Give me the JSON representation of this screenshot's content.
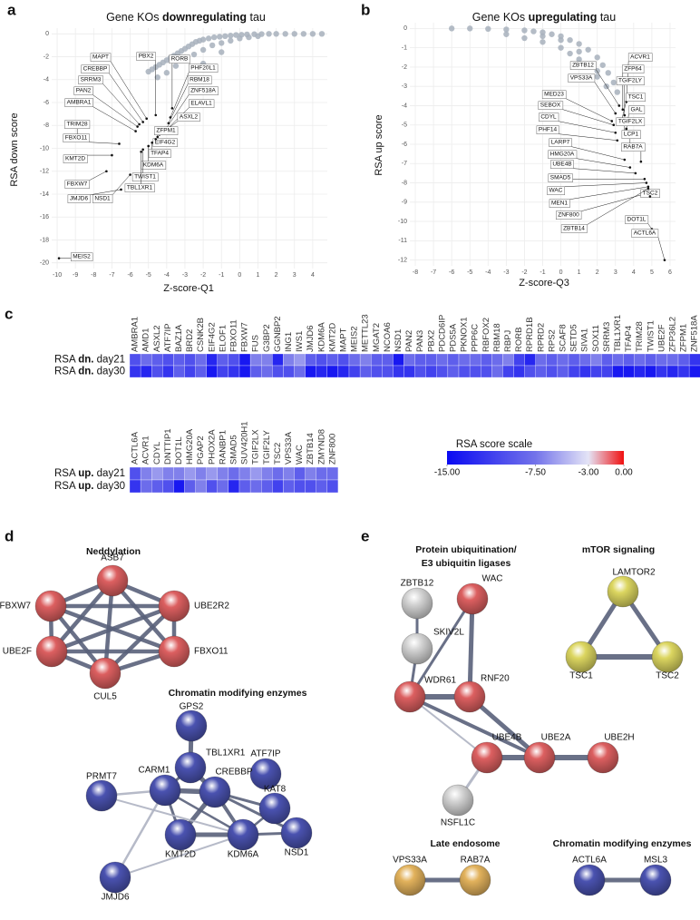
{
  "chart_data": [
    {
      "type": "scatter",
      "panel": "a",
      "title": [
        "Gene KOs ",
        "downregulating",
        " tau"
      ],
      "x_label": "Z-score-Q1",
      "y_label": "RSA down score",
      "xlim": [
        -10.3,
        4.8
      ],
      "ylim": [
        -20.5,
        0.5
      ],
      "xticks": [
        -10,
        -9,
        -8,
        -7,
        -6,
        -5,
        -4,
        -3,
        -2,
        -1,
        0,
        1,
        2,
        3,
        4
      ],
      "yticks": [
        0,
        -2,
        -4,
        -6,
        -8,
        -10,
        -12,
        -14,
        -16,
        -18,
        -20
      ],
      "grid": true,
      "series": [
        {
          "color": "#a7b0bc",
          "x": [
            -5.0,
            -4.8,
            -4.6,
            -4.4,
            -4.2,
            -4.0,
            -3.8,
            -3.6,
            -3.4,
            -3.2,
            -3.0,
            -2.8,
            -2.6,
            -2.4,
            -2.2,
            -2.0,
            -1.7,
            -1.4,
            -1.1,
            -0.8,
            -0.5,
            -0.2,
            0.1,
            0.4,
            0.8,
            1.2,
            1.6,
            2.0,
            2.5,
            3.0,
            3.5,
            4.0,
            4.5,
            -4.5,
            -4.0,
            -3.5,
            -3.0,
            -2.5,
            -2.0,
            -1.5,
            -1.0,
            -0.5,
            0.0,
            0.5,
            1.0,
            -2.0,
            -1.0
          ],
          "values": [
            -3.3,
            -3.1,
            -2.9,
            -2.7,
            -2.5,
            -2.3,
            -2.1,
            -1.9,
            -1.7,
            -1.5,
            -1.3,
            -1.1,
            -0.9,
            -0.7,
            -0.6,
            -0.5,
            -0.4,
            -0.3,
            -0.25,
            -0.2,
            -0.15,
            -0.1,
            -0.08,
            -0.05,
            -0.03,
            -0.02,
            0,
            0,
            0,
            0,
            0,
            0,
            0,
            -3.8,
            -3.4,
            -2.8,
            -2.3,
            -1.8,
            -1.4,
            -1.0,
            -0.8,
            -0.6,
            -0.4,
            -0.3,
            -0.2,
            -2.6,
            -1.6
          ]
        },
        {
          "color": "#111111",
          "x": [
            -9.9,
            -5.1,
            -4.6,
            -3.7,
            -5.3,
            -3.8,
            -5.5,
            -3.9,
            -5.6,
            -4.0,
            -5.7,
            -4.1,
            -8.9,
            -4.4,
            -6.6,
            -4.5,
            -4.6,
            -7.0,
            -4.8,
            -5.0,
            -7.3,
            -5.3,
            -5.4,
            -6.5,
            -6.0
          ],
          "values": [
            -19.6,
            -7.4,
            -7.1,
            -6.5,
            -7.7,
            -7.3,
            -7.9,
            -7.8,
            -8.1,
            -8.2,
            -8.5,
            -8.5,
            -9.1,
            -8.8,
            -9.6,
            -9.0,
            -9.2,
            -10.6,
            -9.5,
            -9.8,
            -12.0,
            -10.1,
            -10.3,
            -13.6,
            -12.3
          ],
          "point_labels": [
            "MEIS2",
            "MAPT",
            "PBX2",
            "RORB",
            "CREBBP",
            "PHF20L1",
            "SRRM3",
            "RBM18",
            "PAN2",
            "ZNF518A",
            "AMBRA1",
            "ELAVL1",
            "TRIM28",
            "ASXL2",
            "FBXO11",
            "ZFPM1",
            "EIF4G2",
            "KMT2D",
            "TFAP4",
            "KDM6A",
            "FBXW7",
            "TWIST1",
            "TBL1XR1",
            "JMJD6",
            "NSD1"
          ]
        }
      ]
    },
    {
      "type": "scatter",
      "panel": "b",
      "title": [
        "Gene KOs ",
        "upregulating",
        " tau"
      ],
      "x_label": "Z-score-Q3",
      "y_label": "RSA up score",
      "xlim": [
        -8.3,
        6.3
      ],
      "ylim": [
        -12.3,
        0.3
      ],
      "xticks": [
        -8,
        -7,
        -6,
        -5,
        -4,
        -3,
        -2,
        -1,
        0,
        1,
        2,
        3,
        4,
        5,
        6
      ],
      "yticks": [
        0,
        -1,
        -2,
        -3,
        -4,
        -5,
        -6,
        -7,
        -8,
        -9,
        -10,
        -11,
        -12
      ],
      "grid": true,
      "series": [
        {
          "color": "#a7b0bc",
          "x": [
            -6,
            -5,
            -4,
            -3,
            -2,
            -1.5,
            -1,
            -0.5,
            0,
            0.5,
            1,
            1.5,
            2,
            2.3,
            2.6,
            2.9,
            3.1,
            -3,
            -2,
            -1,
            0,
            0.5,
            1,
            1.5,
            2,
            2.5,
            -1,
            0,
            1,
            2
          ],
          "values": [
            0,
            0,
            -0.02,
            -0.05,
            -0.1,
            -0.15,
            -0.2,
            -0.3,
            -0.4,
            -0.6,
            -0.8,
            -1.1,
            -1.5,
            -1.9,
            -2.3,
            -2.8,
            -3.3,
            -0.3,
            -0.5,
            -0.7,
            -1.0,
            -1.3,
            -1.6,
            -2.0,
            -2.5,
            -3.0,
            -0.4,
            -0.6,
            -1.2,
            -2.2
          ]
        },
        {
          "color": "#111111",
          "x": [
            3.6,
            3.2,
            3.4,
            3.0,
            3.5,
            2.8,
            3.3,
            2.9,
            3.6,
            3.0,
            3.5,
            3.1,
            3.8,
            3.5,
            4.4,
            3.8,
            4.1,
            4.6,
            4.7,
            4.8,
            4.9,
            4.9,
            4.8,
            5.0,
            5.7
          ],
          "values": [
            -3.8,
            -4.0,
            -4.2,
            -4.4,
            -4.5,
            -4.8,
            -4.9,
            -5.0,
            -5.2,
            -5.4,
            -5.6,
            -5.8,
            -6.2,
            -6.8,
            -6.9,
            -7.2,
            -7.5,
            -7.8,
            -8.0,
            -8.2,
            -8.5,
            -8.7,
            -8.3,
            -10.4,
            -12.0
          ],
          "point_labels": [
            "ACVR1",
            "ZBTB12",
            "ZFP64",
            "VPS33A",
            "TGIF2LY",
            "MED23",
            "TSC1",
            "SEBOX",
            "GAL",
            "CDYL",
            "TGIF2LX",
            "PHF14",
            "LCP1",
            "LARP7",
            "RAB7A",
            "HMG20A",
            "UBE4B",
            "SMAD5",
            "WAC",
            "MEN1",
            "ZNF800",
            "TSC2",
            "ZBTB14",
            "DOT1L",
            "ACTL6A"
          ]
        }
      ]
    },
    {
      "type": "heatmap",
      "panel": "c",
      "categories": [
        "AMBRA1",
        "AMD1",
        "ASXL2",
        "ATF7IP",
        "BAZ1A",
        "BRD2",
        "CSNK2B",
        "EIF4G2",
        "ELOF1",
        "FBXO11",
        "FBXW7",
        "FUS",
        "G3BP2",
        "GGNBP2",
        "ING1",
        "IWS1",
        "JMJD6",
        "KDM6A",
        "KMT2D",
        "MAPT",
        "MEIS2",
        "METTL23",
        "MGAT2",
        "NCOA6",
        "NSD1",
        "PAN2",
        "PAN3",
        "PBX2",
        "PDCD6IP",
        "PDS5A",
        "PKNOX1",
        "PPP6C",
        "RBFOX2",
        "RBM18",
        "RBPJ",
        "RORB",
        "RPRD1B",
        "RPRD2",
        "RPS2",
        "SCAF8",
        "SETD5",
        "SIVA1",
        "SOX11",
        "SRRM3",
        "TBL1XR1",
        "TFAP4",
        "TRIM28",
        "TWIST1",
        "UBE2F",
        "ZFP36L2",
        "ZFPM1",
        "ZNF518A"
      ],
      "series": [
        {
          "name": [
            "RSA ",
            "dn.",
            " day21"
          ],
          "values": [
            -10,
            -8,
            -9,
            -10,
            -9,
            -10,
            -8,
            -13,
            -9,
            -10,
            -14,
            -7,
            -7,
            -13,
            -7,
            -6,
            -9,
            -10,
            -9,
            -10,
            -8,
            -7,
            -9,
            -9,
            -14,
            -8,
            -9,
            -9,
            -8,
            -9,
            -8,
            -8,
            -9,
            -8,
            -7,
            -11,
            -13,
            -8,
            -9,
            -8,
            -9,
            -8,
            -7,
            -9,
            -8,
            -9,
            -8,
            -9,
            -8,
            -8,
            -9,
            -12
          ]
        },
        {
          "name": [
            "RSA ",
            "dn.",
            " day30"
          ],
          "values": [
            -12,
            -13,
            -10,
            -12,
            -9,
            -11,
            -9,
            -14,
            -11,
            -12,
            -14,
            -9,
            -8,
            -10,
            -10,
            -8,
            -14,
            -13,
            -14,
            -13,
            -11,
            -9,
            -10,
            -10,
            -12,
            -12,
            -10,
            -11,
            -10,
            -9,
            -10,
            -10,
            -10,
            -8,
            -11,
            -12,
            -10,
            -9,
            -10,
            -9,
            -11,
            -12,
            -11,
            -11,
            -14,
            -14,
            -13,
            -14,
            -12,
            -13,
            -12,
            -14
          ]
        }
      ]
    },
    {
      "type": "heatmap",
      "categories": [
        "ACTL6A",
        "ACVR1",
        "CDYL",
        "DNTTIP1",
        "DOT1L",
        "HMG20A",
        "PGAP2",
        "PHOX2A",
        "RANBP1",
        "SMAD5",
        "SUV420H1",
        "TGIF2LX",
        "TGIF2LY",
        "TSC2",
        "VPS33A",
        "WAC",
        "ZBTB14",
        "ZMYND8",
        "ZNF800"
      ],
      "series": [
        {
          "name": [
            "RSA ",
            "up.",
            " day21"
          ],
          "values": [
            -10,
            -7,
            -6,
            -7,
            -7,
            -6,
            -7,
            -6,
            -7,
            -8,
            -7,
            -6,
            -7,
            -8,
            -7,
            -9,
            -7,
            -8,
            -8
          ]
        },
        {
          "name": [
            "RSA ",
            "up.",
            " day30"
          ],
          "values": [
            -12,
            -8,
            -9,
            -10,
            -14,
            -9,
            -7,
            -10,
            -8,
            -13,
            -9,
            -8,
            -9,
            -11,
            -9,
            -10,
            -10,
            -9,
            -10
          ]
        }
      ]
    },
    {
      "type": "colorbar",
      "title": "RSA score scale",
      "ticks": [
        {
          "value": -15,
          "label": "-15.00"
        },
        {
          "value": -7.5,
          "label": "-7.50"
        },
        {
          "value": -3,
          "label": "-3.00"
        },
        {
          "value": 0,
          "label": "0.00"
        }
      ],
      "colors": [
        "#0a0af2",
        "#7373ea",
        "#e4e4f6",
        "#f01010"
      ]
    }
  ],
  "networks": [
    {
      "panel": "d",
      "groups": [
        {
          "title": [
            "Neddylation"
          ],
          "nodes": [
            {
              "label": "ASB7",
              "color": "#dc5f60"
            },
            {
              "label": "FBXW7",
              "color": "#dc5f60"
            },
            {
              "label": "UBE2R2",
              "color": "#dc5f60"
            },
            {
              "label": "UBE2F",
              "color": "#dc5f60"
            },
            {
              "label": "FBXO11",
              "color": "#dc5f60"
            },
            {
              "label": "CUL5",
              "color": "#dc5f60"
            }
          ]
        },
        {
          "title": [
            "Chromatin modifying enzymes"
          ],
          "nodes": [
            {
              "label": "GPS2",
              "color": "#4a52b0"
            },
            {
              "label": "TBL1XR1",
              "color": "#4a52b0"
            },
            {
              "label": "ATF7IP",
              "color": "#4a52b0"
            },
            {
              "label": "PRMT7",
              "color": "#4a52b0"
            },
            {
              "label": "CARM1",
              "color": "#4a52b0"
            },
            {
              "label": "CREBBP",
              "color": "#4a52b0"
            },
            {
              "label": "KAT8",
              "color": "#4a52b0"
            },
            {
              "label": "KMT2D",
              "color": "#4a52b0"
            },
            {
              "label": "KDM6A",
              "color": "#4a52b0"
            },
            {
              "label": "NSD1",
              "color": "#4a52b0"
            },
            {
              "label": "JMJD6",
              "color": "#4a52b0"
            }
          ]
        }
      ]
    },
    {
      "panel": "e",
      "groups": [
        {
          "title": [
            "Protein ubiquitination/",
            "E3 ubiquitin ligases"
          ],
          "nodes": [
            {
              "label": "ZBTB12",
              "color": "#d4d4d4"
            },
            {
              "label": "SKIV2L",
              "color": "#d4d4d4"
            },
            {
              "label": "WAC",
              "color": "#dc5f60"
            },
            {
              "label": "WDR61",
              "color": "#dc5f60"
            },
            {
              "label": "RNF20",
              "color": "#dc5f60"
            },
            {
              "label": "UBE4B",
              "color": "#dc5f60"
            },
            {
              "label": "UBE2A",
              "color": "#dc5f60"
            },
            {
              "label": "UBE2H",
              "color": "#dc5f60"
            },
            {
              "label": "NSFL1C",
              "color": "#d4d4d4"
            }
          ]
        },
        {
          "title": [
            "mTOR signaling"
          ],
          "nodes": [
            {
              "label": "LAMTOR2",
              "color": "#dcd660"
            },
            {
              "label": "TSC1",
              "color": "#dcd660"
            },
            {
              "label": "TSC2",
              "color": "#dcd660"
            }
          ]
        },
        {
          "title": [
            "Late endosome"
          ],
          "nodes": [
            {
              "label": "VPS33A",
              "color": "#e2b25c"
            },
            {
              "label": "RAB7A",
              "color": "#e2b25c"
            }
          ]
        },
        {
          "title": [
            "Chromatin modifying enzymes"
          ],
          "nodes": [
            {
              "label": "ACTL6A",
              "color": "#4a52b0"
            },
            {
              "label": "MSL3",
              "color": "#4a52b0"
            }
          ]
        }
      ]
    }
  ]
}
